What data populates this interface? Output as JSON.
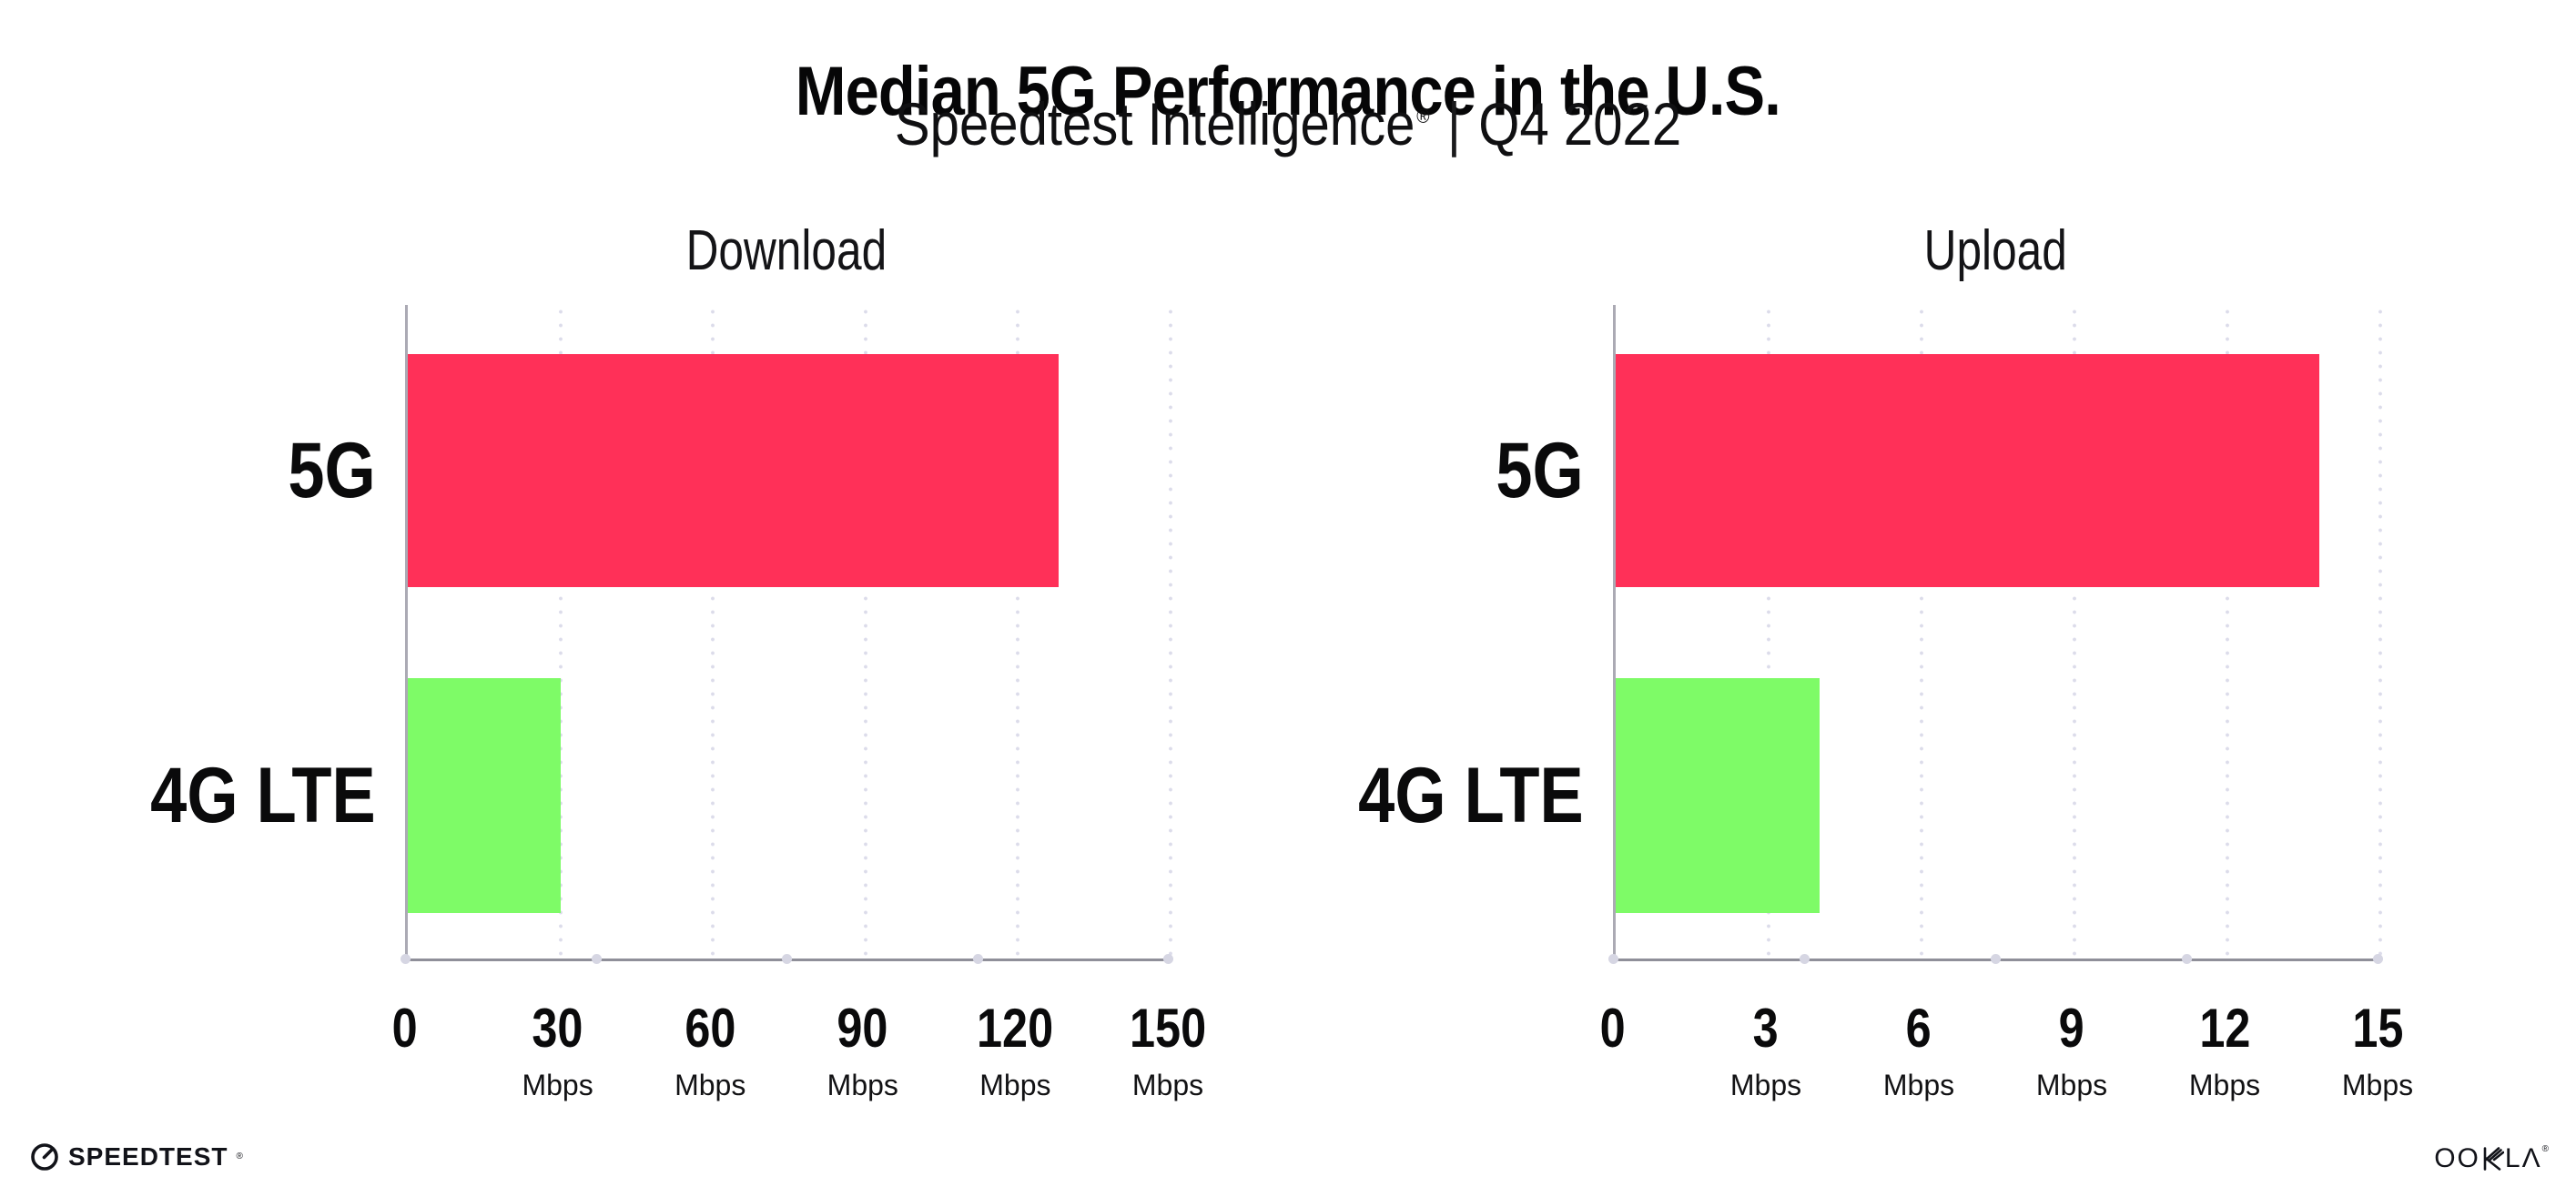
{
  "header": {
    "title": "Median 5G Performance in the U.S.",
    "subtitle_brand": "Speedtest Intelligence",
    "subtitle_reg": "®",
    "subtitle_sep": "|",
    "subtitle_period": "Q4 2022"
  },
  "chart_data": [
    {
      "type": "bar",
      "orientation": "horizontal",
      "title": "Download",
      "categories": [
        "5G",
        "4G LTE"
      ],
      "values": [
        128,
        30
      ],
      "unit": "Mbps",
      "xlim": [
        0,
        150
      ],
      "xticks": [
        0,
        30,
        60,
        90,
        120,
        150
      ],
      "bar_colors": [
        "#FF3058",
        "#7EFB67"
      ],
      "grid": "vertical-dotted",
      "legend": "none"
    },
    {
      "type": "bar",
      "orientation": "horizontal",
      "title": "Upload",
      "categories": [
        "5G",
        "4G LTE"
      ],
      "values": [
        13.8,
        4
      ],
      "unit": "Mbps",
      "xlim": [
        0,
        15
      ],
      "xticks": [
        0,
        3,
        6,
        9,
        12,
        15
      ],
      "bar_colors": [
        "#FF3058",
        "#7EFB67"
      ],
      "grid": "vertical-dotted",
      "legend": "none"
    }
  ],
  "footer": {
    "speedtest_label": "SPEEDTEST",
    "speedtest_reg": "®",
    "ookla_wordmark": "OOKLA",
    "ookla_oo": "OO",
    "ookla_la": "LΛ",
    "ookla_reg": "®"
  },
  "colors": {
    "bar_5g": "#FF3058",
    "bar_4g_lte": "#7EFB67",
    "gridline": "#DCDCEA",
    "axis": "#8F8F99",
    "text": "#0B0B0C"
  }
}
